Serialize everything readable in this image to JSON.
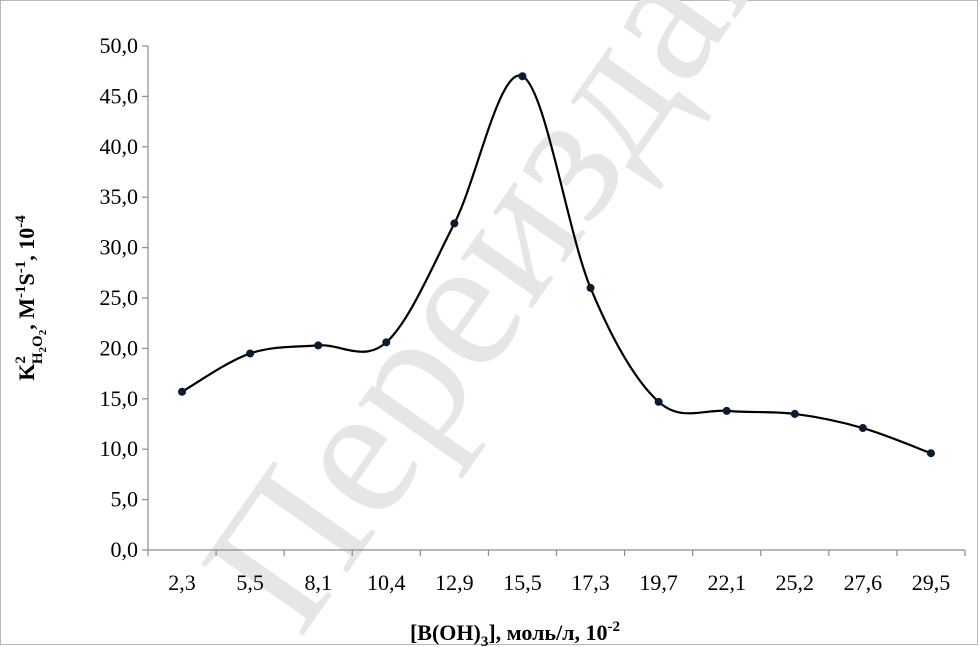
{
  "chart_data": {
    "type": "line",
    "smooth": true,
    "markers": true,
    "categories": [
      "2,3",
      "5,5",
      "8,1",
      "10,4",
      "12,9",
      "15,5",
      "17,3",
      "19,7",
      "22,1",
      "25,2",
      "27,6",
      "29,5"
    ],
    "series": [
      {
        "values": [
          15.7,
          19.5,
          20.3,
          20.6,
          32.4,
          47.0,
          26.0,
          14.7,
          13.8,
          13.5,
          12.1,
          9.6
        ]
      }
    ],
    "ylim": [
      0,
      50
    ],
    "ystep": 5,
    "ytick_labels": [
      "0,0",
      "5,0",
      "10,0",
      "15,0",
      "20,0",
      "25,0",
      "30,0",
      "35,0",
      "40,0",
      "45,0",
      "50,0"
    ],
    "xlabel": {
      "main": "[B(OH)",
      "sub": "3",
      "rest": "], моль/л, 10",
      "sup": "-2"
    },
    "ylabel": {
      "k": "K",
      "sup1": "2",
      "sub1": "H",
      "sub2": "2",
      "sub3": "O",
      "sub4": "2",
      "mid": ", M",
      "sup2": "-1",
      "s": "S",
      "sup3": "-1",
      "tail": ", 10",
      "sup4": "-4"
    },
    "grid": false,
    "legend": "none",
    "colors": {
      "line": "#000000",
      "marker": "#0d1b2e",
      "axis": "#8c8c8c"
    }
  },
  "watermark": {
    "text": "Переиздан"
  }
}
